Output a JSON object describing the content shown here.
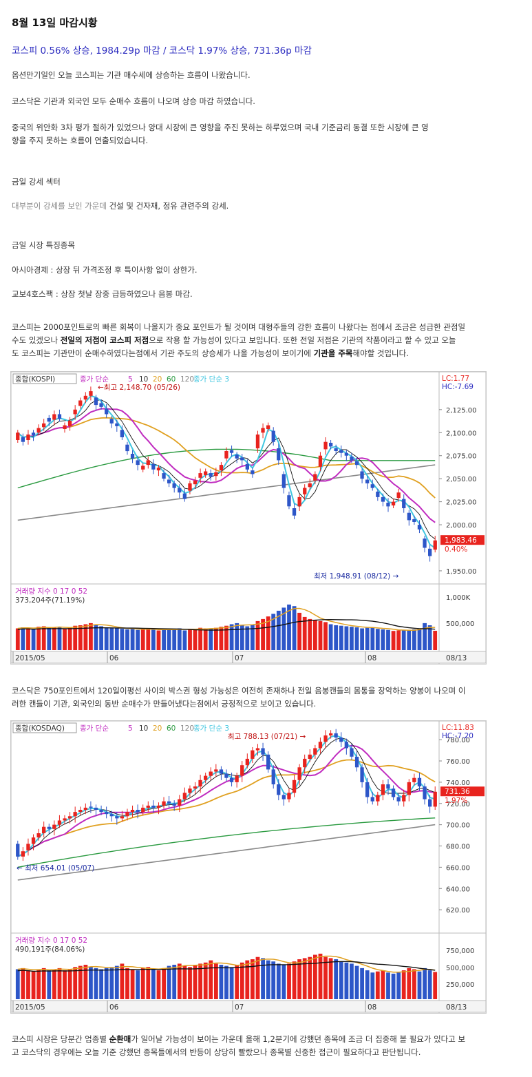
{
  "article": {
    "title": "8월 13일 마감시황",
    "subtitle": "코스피 0.56% 상승, 1984.29p 마감 / 코스닥 1.97% 상승, 731.36p 마감",
    "p1": "옵션만기일인 오늘 코스피는 기관 매수세에 상승하는 흐름이 나왔습니다.",
    "p2": "코스닥은 기관과 외국인 모두 순매수 흐름이 나오며 상승 마감 하였습니다.",
    "p3_line1": "중국의 위안화 3차 평가 절하가 있었으나 양대 시장에 큰 영향을 주진 못하는 하루였으며 국내 기준금리 동결 또한 시장에 큰 영",
    "p3_line2": "향을 주지 못하는 흐름이 연출되었습니다.",
    "sector_heading": "금일 강세 섹터",
    "sector_muted": "대부분이 강세를 보인 가운데",
    "sector_text": " 건설 및 건자재, 정유 관련주의 강세.",
    "stocks_heading": "금일 시장 특징종목",
    "stock1": "아시아경제 : 상장 뒤 가격조정 후 특이사항 없이 상한가.",
    "stock2": "교보4호스팩 : 상장 첫날 장중 급등하였으나 음봉 마감.",
    "kospi_p_line1": "코스피는 2000포인트로의 빠른 회복이 나올지가 중요 포인트가 될 것이며 대형주들의 강한 흐름이 나왔다는 점에서 조금은 성급한 관점일",
    "kospi_p_line2a": "수도 있겠으나 ",
    "kospi_p_line2b": "전일의 저점이 코스피 저점",
    "kospi_p_line2c": "으로 작용 할 가능성이 있다고 보입니다. 또한 전일 저점은 기관의 작품이라고 할 수 있고 오늘",
    "kospi_p_line3a": "도 코스피는 기관만이 순매수하였다는점에서 기관 주도의 상승세가 나올 가능성이 보이기에 ",
    "kospi_p_line3b": "기관을 주목",
    "kospi_p_line3c": "해야할 것입니다.",
    "kosdaq_p_line1": "코스닥은 750포인트에서 120일이평선 사이의 박스권  형성 가능성은 여전히 존재하나 전일 음봉캔들의 몸통을 장악하는 양봉이 나오며 이",
    "kosdaq_p_line2": "러한 캔들이 기관, 외국인의 동반 순매수가 만들어냈다는점에서 긍정적으로 보이고 있습니다.",
    "final_line1a": "코스피 시장은 당분간 업종별 ",
    "final_line1b": "순환매",
    "final_line1c": "가 일어날 가능성이 보이는 가운데 올해 1,2분기에 강했던 종목에 조금 더 집중해 볼 필요가 있다고 보",
    "final_line2": "고 코스닥의 경우에는 오늘 기준 강했던 종목들에서의 반등이 상당히 빨랐으나 종목별 신중한 접근이 필요하다고 판단됩니다."
  },
  "colors": {
    "up": "#e8231e",
    "down": "#2d56c8",
    "ma5": "#3fc6e0",
    "ma10": "#c02cc0",
    "ma20": "#e0a020",
    "ma60": "#2a9a40",
    "ma120": "#8a8a8a",
    "blue_text": "#2c2cc0"
  },
  "chart_data": [
    {
      "type": "candlestick",
      "name_label": "종합(KOSPI)",
      "ma_label": "종가 단순",
      "ma_periods": [
        "5",
        "10",
        "20",
        "60",
        "120"
      ],
      "ma2_label": "종가 단순 3",
      "lc": "LC:1.77",
      "hc": "HC:-7.69",
      "high_label": "최고 2,148.70 (05/26)",
      "low_label": "최저 1,948.91 (08/12)",
      "last_price": "1,983.46",
      "last_change": "0.40%",
      "y_ticks": [
        "2,125.00",
        "2,100.00",
        "2,075.00",
        "2,050.00",
        "2,025.00",
        "2,000.00",
        "1,950.00"
      ],
      "y_tick_values": [
        2125,
        2100,
        2075,
        2050,
        2025,
        2000,
        1950
      ],
      "ylim": [
        1938,
        2163
      ],
      "x_labels": [
        "2015/05",
        "06",
        "07",
        "08"
      ],
      "date_label": "08/13",
      "closes": [
        2100,
        2090,
        2098,
        2097,
        2105,
        2110,
        2112,
        2120,
        2115,
        2108,
        2113,
        2125,
        2135,
        2140,
        2145,
        2130,
        2128,
        2120,
        2110,
        2107,
        2095,
        2080,
        2072,
        2065,
        2064,
        2070,
        2060,
        2062,
        2050,
        2045,
        2040,
        2035,
        2028,
        2045,
        2048,
        2056,
        2058,
        2052,
        2057,
        2065,
        2080,
        2078,
        2072,
        2070,
        2060,
        2055,
        2098,
        2105,
        2108,
        2090,
        2070,
        2040,
        2020,
        2010,
        2030,
        2040,
        2045,
        2055,
        2075,
        2090,
        2085,
        2080,
        2078,
        2075,
        2070,
        2065,
        2050,
        2045,
        2040,
        2030,
        2025,
        2020,
        2025,
        2035,
        2018,
        2005,
        2003,
        1995,
        1975,
        1966,
        1983
      ],
      "opens_offsets": [
        8,
        -5,
        6,
        -3,
        5,
        4,
        -4,
        6,
        -5,
        4,
        6,
        5,
        6,
        4,
        5,
        -8,
        -4,
        -6,
        -5,
        -3,
        -8,
        -7,
        -5,
        -5,
        4,
        5,
        -6,
        3,
        -6,
        -4,
        -5,
        -5,
        -6,
        8,
        4,
        5,
        4,
        -4,
        4,
        6,
        8,
        -3,
        -4,
        -3,
        -6,
        -4,
        15,
        5,
        4,
        -12,
        -13,
        -15,
        -12,
        -8,
        10,
        7,
        4,
        7,
        12,
        8,
        -4,
        -3,
        -3,
        -3,
        -4,
        -4,
        -8,
        -4,
        -4,
        -6,
        -5,
        -4,
        4,
        6,
        -10,
        -8,
        -3,
        -5,
        -10,
        -8,
        10
      ],
      "volume_label": "거래량 지수 0 17 0 52",
      "volume_value": "373,204주(71.19%)",
      "volume_ticks": [
        "1,000K",
        "500,000"
      ],
      "volumes": [
        420,
        440,
        430,
        410,
        450,
        460,
        430,
        440,
        450,
        420,
        430,
        470,
        480,
        500,
        520,
        490,
        460,
        440,
        430,
        420,
        410,
        400,
        420,
        390,
        400,
        410,
        400,
        380,
        390,
        400,
        410,
        420,
        380,
        400,
        410,
        430,
        420,
        410,
        430,
        450,
        470,
        500,
        520,
        480,
        460,
        490,
        560,
        600,
        650,
        700,
        760,
        820,
        880,
        850,
        720,
        640,
        600,
        580,
        560,
        540,
        500,
        480,
        470,
        460,
        450,
        440,
        420,
        430,
        440,
        410,
        400,
        390,
        370,
        380,
        390,
        380,
        400,
        420,
        520,
        480,
        373
      ]
    },
    {
      "type": "candlestick",
      "name_label": "종합(KOSDAQ)",
      "ma_label": "종가 단순",
      "ma_periods": [
        "5",
        "10",
        "20",
        "60",
        "120"
      ],
      "ma2_label": "종가 단순 3",
      "lc": "LC:11.83",
      "hc": "HC:-7.20",
      "high_label": "최고 788.13 (07/21)",
      "low_label": "최저 654.01 (05/07)",
      "last_price": "731.36",
      "last_change": "1.97%",
      "y_ticks": [
        "780.00",
        "760.00",
        "740.00",
        "720.00",
        "700.00",
        "680.00",
        "660.00",
        "640.00",
        "620.00"
      ],
      "y_tick_values": [
        780,
        760,
        740,
        720,
        700,
        680,
        660,
        640,
        620
      ],
      "ylim": [
        600,
        795
      ],
      "x_labels": [
        "2015/05",
        "06",
        "07",
        "08"
      ],
      "date_label": "08/13",
      "closes": [
        670,
        675,
        682,
        688,
        692,
        698,
        696,
        700,
        704,
        706,
        708,
        712,
        714,
        716,
        716,
        714,
        712,
        710,
        708,
        706,
        708,
        712,
        714,
        712,
        716,
        718,
        716,
        718,
        722,
        720,
        718,
        724,
        730,
        734,
        736,
        742,
        746,
        750,
        752,
        748,
        744,
        740,
        746,
        756,
        762,
        770,
        772,
        766,
        752,
        738,
        728,
        724,
        730,
        742,
        754,
        762,
        766,
        772,
        778,
        784,
        786,
        782,
        778,
        772,
        764,
        754,
        740,
        726,
        722,
        728,
        738,
        734,
        726,
        722,
        728,
        740,
        744,
        736,
        724,
        717,
        731
      ],
      "opens_offsets": [
        -12,
        5,
        6,
        6,
        4,
        6,
        -2,
        4,
        4,
        2,
        2,
        4,
        2,
        2,
        -1,
        -2,
        -2,
        -2,
        -2,
        -2,
        2,
        4,
        2,
        -2,
        4,
        2,
        -2,
        2,
        4,
        -2,
        -2,
        6,
        6,
        4,
        2,
        6,
        4,
        4,
        2,
        -4,
        -4,
        -4,
        6,
        10,
        6,
        8,
        2,
        -6,
        -14,
        -14,
        -10,
        -4,
        6,
        12,
        12,
        8,
        4,
        6,
        6,
        6,
        2,
        -4,
        -4,
        -6,
        -8,
        -10,
        -14,
        -14,
        -4,
        6,
        10,
        -4,
        -8,
        -4,
        6,
        12,
        4,
        -8,
        -12,
        -7,
        14
      ],
      "volume_label": "거래량 지수 0 17 0 52",
      "volume_value": "490,191주(84.06%)",
      "volume_ticks": [
        "750,000",
        "500,000",
        "250,000"
      ],
      "volumes": [
        540,
        560,
        520,
        500,
        540,
        560,
        520,
        540,
        560,
        520,
        540,
        580,
        600,
        620,
        580,
        560,
        540,
        560,
        580,
        600,
        640,
        560,
        540,
        520,
        560,
        580,
        540,
        520,
        560,
        600,
        620,
        640,
        600,
        580,
        620,
        640,
        660,
        700,
        640,
        620,
        600,
        580,
        620,
        660,
        700,
        720,
        760,
        740,
        700,
        680,
        640,
        620,
        640,
        680,
        720,
        740,
        760,
        800,
        820,
        760,
        740,
        720,
        680,
        660,
        640,
        600,
        560,
        520,
        480,
        500,
        520,
        480,
        460,
        480,
        520,
        560,
        540,
        500,
        560,
        520,
        490
      ]
    }
  ]
}
